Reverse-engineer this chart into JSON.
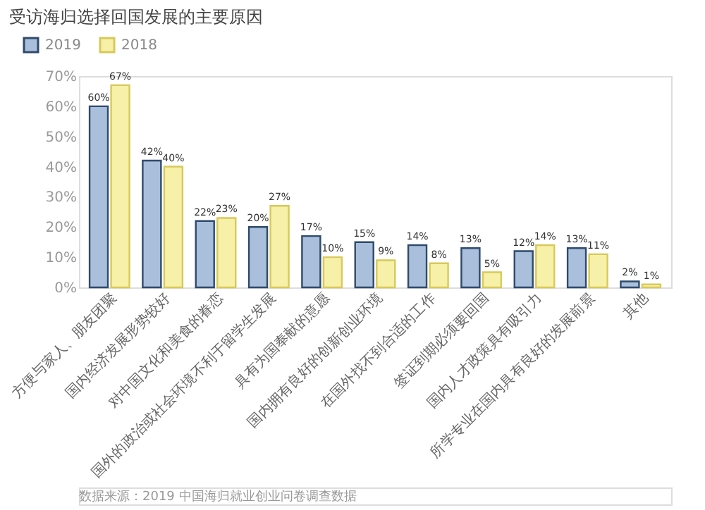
{
  "chart_data": {
    "type": "bar",
    "title": "受访海归选择回国发展的主要原因",
    "categories": [
      "方便与家人、朋友团聚",
      "国内经济发展形势较好",
      "对中国文化和美食的眷恋",
      "国外的政治或社会环境不利于留学生发展",
      "具有为国奉献的意愿",
      "国内拥有良好的创新创业环境",
      "在国外找不到合适的工作",
      "签证到期必须要回国",
      "国内人才政策具有吸引力",
      "所学专业在国内具有良好的发展前景",
      "其他"
    ],
    "series": [
      {
        "name": "2019",
        "color": "#a9bfdc",
        "values": [
          60,
          42,
          22,
          20,
          17,
          15,
          14,
          13,
          12,
          13,
          2
        ],
        "value_labels": [
          "60%",
          "42%",
          "22%",
          "20%",
          "17%",
          "15%",
          "14%",
          "13%",
          "12%",
          "13%",
          "2%"
        ]
      },
      {
        "name": "2018",
        "color": "#f7f0a8",
        "values": [
          67,
          40,
          23,
          27,
          10,
          9,
          8,
          5,
          14,
          11,
          1
        ],
        "value_labels": [
          "67%",
          "40%",
          "23%",
          "27%",
          "10%",
          "9%",
          "8%",
          "5%",
          "14%",
          "11%",
          "1%"
        ]
      }
    ],
    "ylim": [
      0,
      70
    ],
    "yticks": [
      {
        "value": 0,
        "label": "0%"
      },
      {
        "value": 10,
        "label": "10%"
      },
      {
        "value": 20,
        "label": "20%"
      },
      {
        "value": 30,
        "label": "30%"
      },
      {
        "value": 40,
        "label": "40%"
      },
      {
        "value": 50,
        "label": "50%"
      },
      {
        "value": 60,
        "label": "60%"
      },
      {
        "value": 70,
        "label": "70%"
      }
    ],
    "legend": "top left",
    "grid": false,
    "annotations": [
      "数据来源：2019 中国海归就业创业问卷调查数据"
    ]
  }
}
